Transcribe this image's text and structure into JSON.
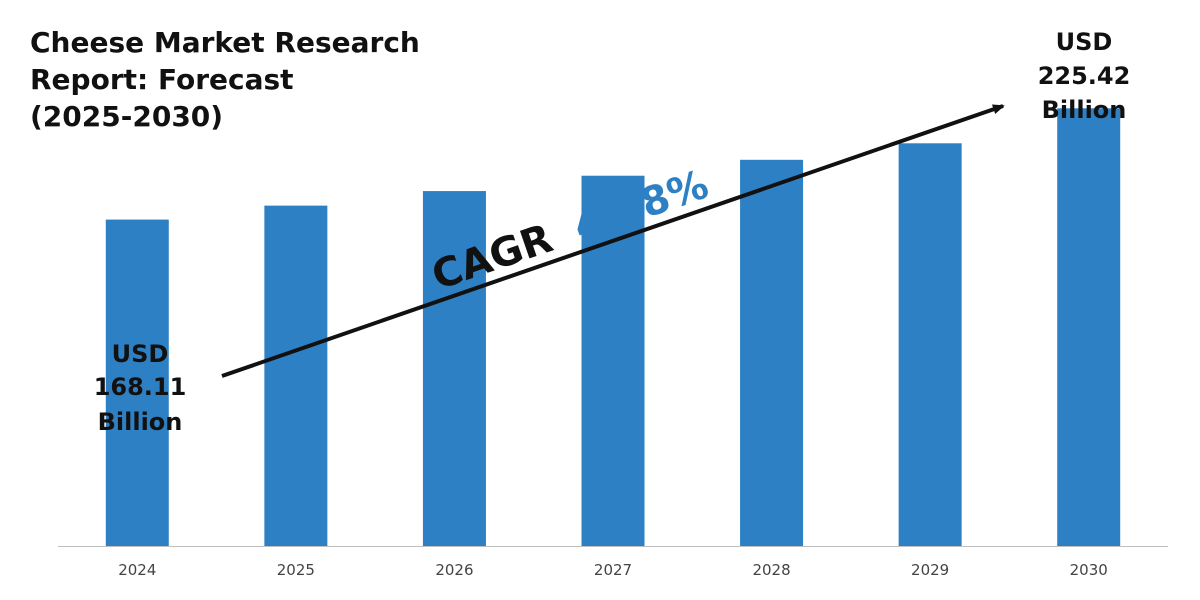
{
  "title": {
    "line1": "Cheese Market Research",
    "line2": "Report: Forecast",
    "line3": "(2025-2030)"
  },
  "colors": {
    "bar": "#2E80C4",
    "cagr_value": "#2E80C4",
    "text": "#111111",
    "axis": "#bfbfbf"
  },
  "chart_data": {
    "type": "bar",
    "categories": [
      "2024",
      "2025",
      "2026",
      "2027",
      "2028",
      "2029",
      "2030"
    ],
    "values": [
      168.11,
      175.3,
      182.8,
      190.7,
      198.9,
      207.4,
      225.42
    ],
    "ylim": [
      0,
      240
    ],
    "grid": false,
    "start_label": [
      "USD",
      "168.11",
      "Billion"
    ],
    "end_label": [
      "USD",
      "225.42",
      "Billion"
    ],
    "cagr_label": "CAGR",
    "cagr_value": "4.28%"
  }
}
